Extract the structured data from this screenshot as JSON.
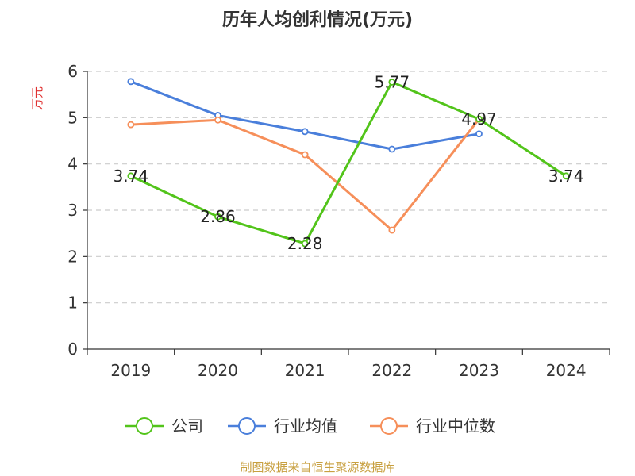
{
  "chart_data": {
    "type": "line",
    "title": "历年人均创利情况(万元)",
    "ylabel": "万元",
    "categories": [
      "2019",
      "2020",
      "2021",
      "2022",
      "2023",
      "2024"
    ],
    "ylim": [
      0,
      6
    ],
    "yticks": [
      0,
      1,
      2,
      3,
      4,
      5,
      6
    ],
    "grid": true,
    "legend_position": "bottom",
    "series": [
      {
        "name": "公司",
        "values": [
          3.74,
          2.86,
          2.28,
          5.77,
          4.97,
          3.74
        ],
        "color": "#52c41a",
        "labeled": true
      },
      {
        "name": "行业均值",
        "values": [
          5.78,
          5.05,
          4.7,
          4.32,
          4.65,
          null
        ],
        "color": "#4a7fdb",
        "labeled": false
      },
      {
        "name": "行业中位数",
        "values": [
          4.85,
          4.95,
          4.2,
          2.57,
          4.97,
          null
        ],
        "color": "#f68f5a",
        "labeled": false
      }
    ],
    "source": "制图数据来自恒生聚源数据库",
    "source_color": "#c8a040",
    "ylabel_color": "#e03030"
  }
}
